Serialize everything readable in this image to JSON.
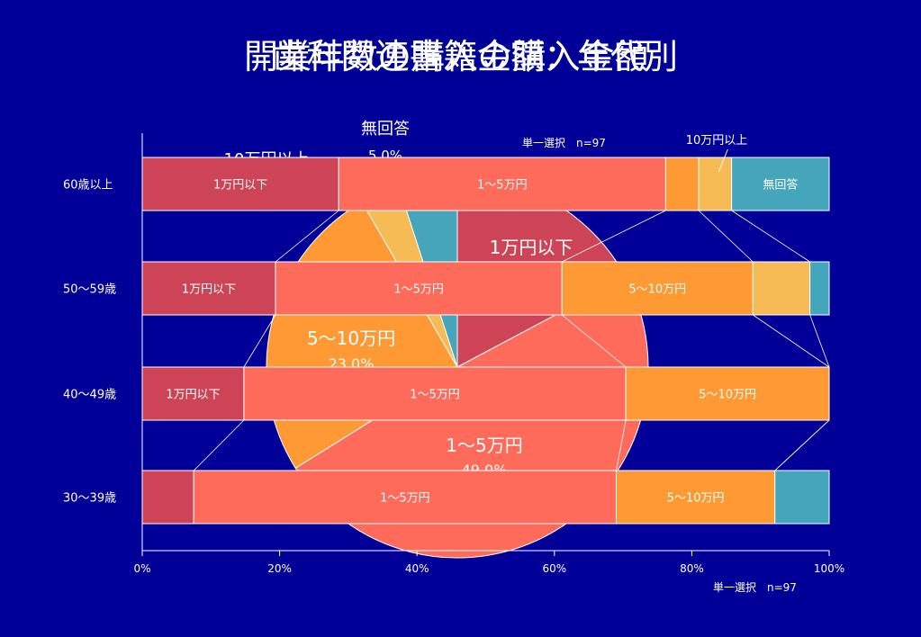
{
  "titles": [
    "歯科関連書籍の購入金額",
    "開業年数の購入金額：年代別"
  ],
  "pie_chart": {
    "n_label": "単一選択　n=97",
    "slices": [
      {
        "label": "1万円以下",
        "color": "#cc4455"
      },
      {
        "label": "1～5万円",
        "pct_label": "49.0%",
        "color": "#ff6b5b"
      },
      {
        "label": "5～10万円",
        "pct_label": "23.0%",
        "color": "#ff9933"
      },
      {
        "label": "10万円以上",
        "color": "#f7bb55"
      },
      {
        "label": "無回答",
        "pct_label": "5.0%",
        "color": "#44a5bb"
      }
    ]
  },
  "chart_data": {
    "type": "bar",
    "orientation": "horizontal",
    "stacked": "percent",
    "categories": [
      "60歳以上",
      "50～59歳",
      "40～49歳",
      "30～39歳"
    ],
    "series": [
      {
        "name": "1万円以下",
        "values": [
          28.6,
          19.4,
          14.8,
          7.5
        ],
        "color": "#cc4455"
      },
      {
        "name": "1～5万円",
        "values": [
          47.6,
          41.7,
          55.6,
          61.5
        ],
        "color": "#ff6b5b"
      },
      {
        "name": "5～10万円",
        "values": [
          4.8,
          27.8,
          29.6,
          23.1
        ],
        "color": "#ff9933"
      },
      {
        "name": "10万円以上",
        "values": [
          4.8,
          8.3,
          0,
          0
        ],
        "color": "#f7bb55"
      },
      {
        "name": "無回答",
        "values": [
          14.2,
          2.8,
          0,
          7.9
        ],
        "color": "#44a5bb"
      }
    ],
    "bar_labels": [
      [
        "1万円以下",
        "1～5万円",
        "",
        "",
        "無回答"
      ],
      [
        "1万円以下",
        "1～5万円",
        "5～10万円",
        "",
        ""
      ],
      [
        "1万円以下",
        "1～5万円",
        "5～10万円",
        "",
        ""
      ],
      [
        "",
        "1～5万円",
        "5～10万円",
        "",
        ""
      ]
    ],
    "callout_label": "10万円以上",
    "xticks": [
      "0%",
      "20%",
      "40%",
      "60%",
      "80%",
      "100%"
    ],
    "xlim": [
      0,
      100
    ],
    "n_label_top": "単一選択　n=97",
    "n_label_bottom": "単一選択　n=97"
  }
}
